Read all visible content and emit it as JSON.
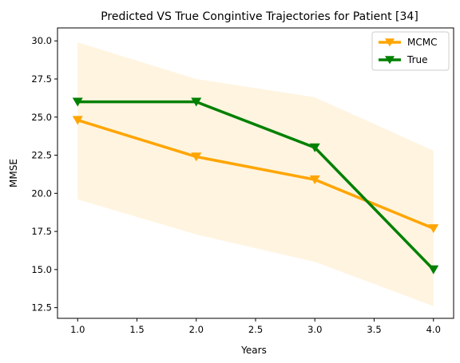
{
  "chart_data": {
    "type": "line",
    "title": "Predicted VS True Congintive Trajectories for Patient [34]",
    "xlabel": "Years",
    "ylabel": "MMSE",
    "xlim": [
      0.83,
      4.17
    ],
    "ylim": [
      11.8,
      30.85
    ],
    "xticks": [
      "1.0",
      "1.5",
      "2.0",
      "2.5",
      "3.0",
      "3.5",
      "4.0"
    ],
    "xtick_values": [
      1.0,
      1.5,
      2.0,
      2.5,
      3.0,
      3.5,
      4.0
    ],
    "yticks": [
      "12.5",
      "15.0",
      "17.5",
      "20.0",
      "22.5",
      "25.0",
      "27.5",
      "30.0"
    ],
    "ytick_values": [
      12.5,
      15.0,
      17.5,
      20.0,
      22.5,
      25.0,
      27.5,
      30.0
    ],
    "x": [
      1.0,
      2.0,
      3.0,
      4.0
    ],
    "series": [
      {
        "name": "MCMC",
        "values": [
          24.8,
          22.4,
          20.9,
          17.7
        ],
        "color": "#FFA500"
      },
      {
        "name": "True",
        "values": [
          26.0,
          26.0,
          23.0,
          15.0
        ],
        "color": "#008000"
      }
    ],
    "band": {
      "upper": [
        29.9,
        27.5,
        26.3,
        22.8
      ],
      "lower": [
        19.6,
        17.3,
        15.5,
        12.6
      ],
      "color": "#FFA500",
      "opacity": 0.12
    },
    "marker": "triangle-down",
    "grid": false,
    "legend_position": "upper-right"
  }
}
